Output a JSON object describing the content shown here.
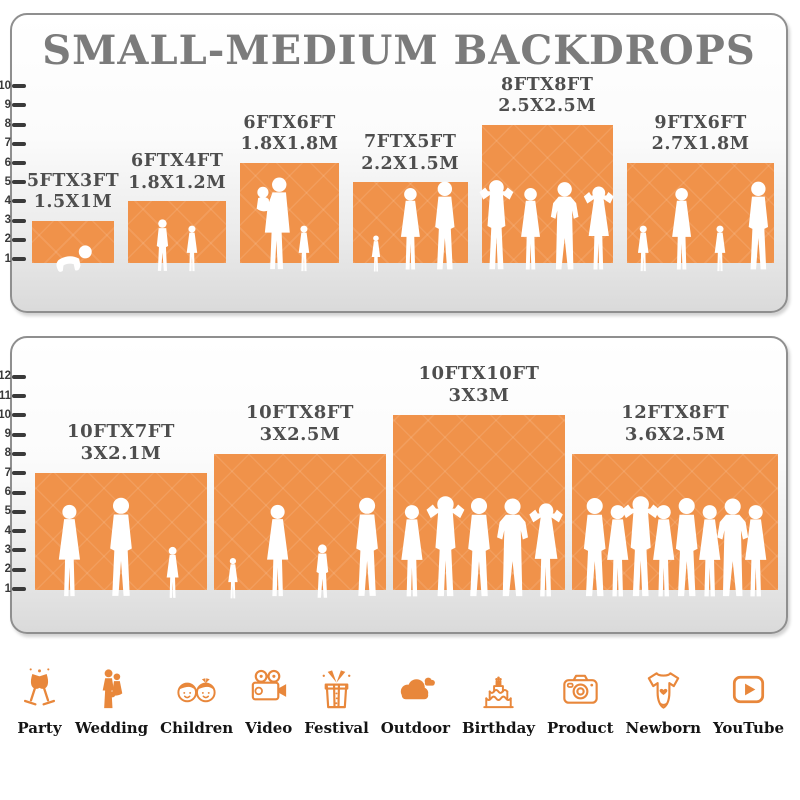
{
  "chart_data": {
    "type": "bar",
    "title": "SMALL-MEDIUM BACKDROPS",
    "bar_color": "#F0924A",
    "legend": false,
    "panels": [
      {
        "ylim": [
          0,
          10
        ],
        "yticks": [
          1,
          2,
          3,
          4,
          5,
          6,
          7,
          8,
          9,
          10
        ],
        "bars": [
          {
            "label_ft": "5FTX3FT",
            "label_m": "1.5X1M",
            "width_ft": 5,
            "height_ft": 3,
            "figures": [
              "crawling-baby"
            ]
          },
          {
            "label_ft": "6FTX4FT",
            "label_m": "1.8X1.2M",
            "width_ft": 6,
            "height_ft": 4,
            "figures": [
              "boy",
              "girl"
            ]
          },
          {
            "label_ft": "6FTX6FT",
            "label_m": "1.8X1.8M",
            "width_ft": 6,
            "height_ft": 6,
            "figures": [
              "mother-holding-child",
              "girl"
            ]
          },
          {
            "label_ft": "7FTX5FT",
            "label_m": "2.2X1.5M",
            "width_ft": 7,
            "height_ft": 5,
            "figures": [
              "toddler",
              "woman",
              "man"
            ]
          },
          {
            "label_ft": "8FTX8FT",
            "label_m": "2.5X2.5M",
            "width_ft": 8,
            "height_ft": 8,
            "figures": [
              "man-posing",
              "woman",
              "man-akimbo",
              "woman-posing"
            ]
          },
          {
            "label_ft": "9FTX6FT",
            "label_m": "2.7X1.8M",
            "width_ft": 9,
            "height_ft": 6,
            "figures": [
              "girl",
              "woman",
              "girl",
              "man"
            ]
          }
        ]
      },
      {
        "ylim": [
          0,
          12
        ],
        "yticks": [
          1,
          2,
          3,
          4,
          5,
          6,
          7,
          8,
          9,
          10,
          11,
          12
        ],
        "bars": [
          {
            "label_ft": "10FTX7FT",
            "label_m": "3X2.1M",
            "width_ft": 10,
            "height_ft": 7,
            "figures": [
              "woman",
              "man",
              "girl"
            ]
          },
          {
            "label_ft": "10FTX8FT",
            "label_m": "3X2.5M",
            "width_ft": 10,
            "height_ft": 8,
            "figures": [
              "toddler",
              "woman",
              "child",
              "man"
            ]
          },
          {
            "label_ft": "10FTX10FT",
            "label_m": "3X3M",
            "width_ft": 10,
            "height_ft": 10,
            "figures": [
              "woman",
              "man-posing",
              "man",
              "man-akimbo",
              "woman-posing"
            ]
          },
          {
            "label_ft": "12FTX8FT",
            "label_m": "3.6X2.5M",
            "width_ft": 12,
            "height_ft": 8,
            "figures": [
              "man",
              "woman",
              "man-posing",
              "woman",
              "man",
              "woman",
              "man-akimbo",
              "woman"
            ]
          }
        ]
      }
    ]
  },
  "categories": [
    {
      "label": "Party",
      "icon": "party-icon"
    },
    {
      "label": "Wedding",
      "icon": "wedding-icon"
    },
    {
      "label": "Children",
      "icon": "children-icon"
    },
    {
      "label": "Video",
      "icon": "video-icon"
    },
    {
      "label": "Festival",
      "icon": "festival-icon"
    },
    {
      "label": "Outdoor",
      "icon": "outdoor-icon"
    },
    {
      "label": "Birthday",
      "icon": "birthday-icon"
    },
    {
      "label": "Product",
      "icon": "product-icon"
    },
    {
      "label": "Newborn",
      "icon": "newborn-icon"
    },
    {
      "label": "YouTube",
      "icon": "youtube-icon"
    }
  ],
  "colors": {
    "bar_orange": "#F0924A",
    "icon_orange": "#E8873B",
    "title_gray": "#7B7B7B",
    "label_gray": "#4E4E4E",
    "tick_color": "#3A3A3A",
    "panel_border": "#8F8F8F",
    "silhouette": "#FFFFFF"
  }
}
